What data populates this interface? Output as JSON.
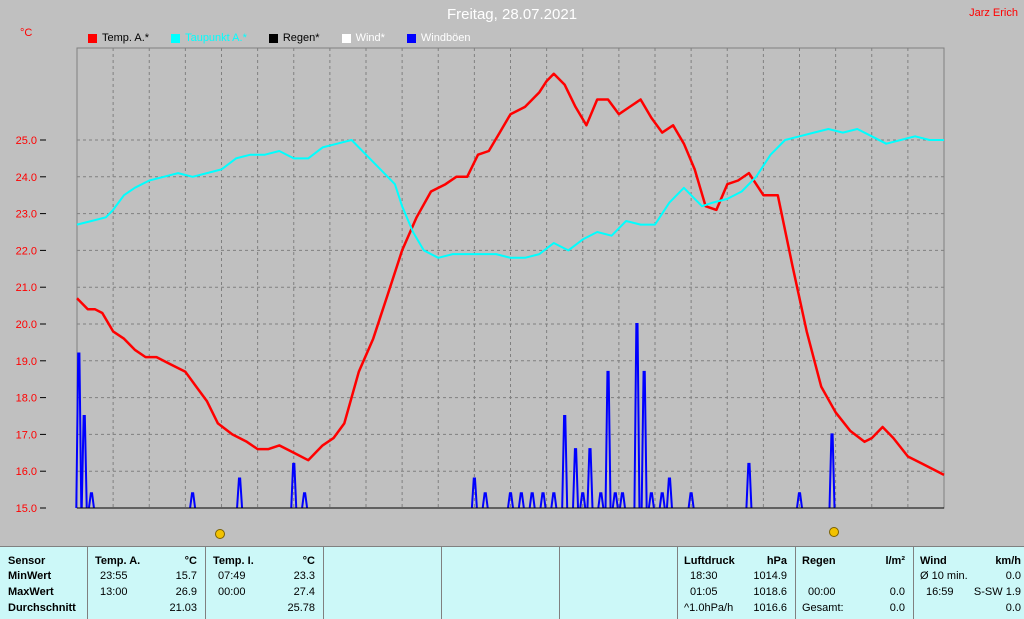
{
  "header": {
    "title": "Freitag, 28.07.2021",
    "author": "Jarz Erich",
    "unit_label": "°C"
  },
  "legend": [
    {
      "label": "Temp. A.*",
      "color": "#ff0000",
      "text_color": "#000000"
    },
    {
      "label": "Taupunkt A.*",
      "color": "#00ffff",
      "text_color": "#00ffff"
    },
    {
      "label": "Regen*",
      "color": "#000000",
      "text_color": "#000000"
    },
    {
      "label": "Wind*",
      "color": "#ffffff",
      "text_color": "#ffffff"
    },
    {
      "label": "Windböen",
      "color": "#0000ff",
      "text_color": "#ffffff"
    }
  ],
  "chart_data": {
    "type": "line",
    "title": "Freitag, 28.07.2021",
    "ylabel": "°C",
    "ylim": [
      15.0,
      27.5
    ],
    "yticks": [
      "15.0",
      "16.0",
      "17.0",
      "18.0",
      "19.0",
      "20.0",
      "21.0",
      "22.0",
      "23.0",
      "24.0",
      "25.0"
    ],
    "xlim": [
      0,
      24
    ],
    "grid": true,
    "legend_position": "top-left",
    "series": [
      {
        "name": "Temp. A.*",
        "color": "#ff0000",
        "x": [
          0.0,
          0.3,
          0.5,
          0.7,
          1.0,
          1.3,
          1.6,
          1.9,
          2.2,
          2.6,
          3.0,
          3.3,
          3.6,
          3.9,
          4.3,
          4.7,
          5.0,
          5.3,
          5.6,
          6.0,
          6.4,
          6.8,
          7.1,
          7.4,
          7.8,
          8.2,
          8.6,
          9.0,
          9.4,
          9.8,
          10.2,
          10.5,
          10.8,
          11.1,
          11.4,
          11.7,
          12.0,
          12.4,
          12.8,
          13.0,
          13.2,
          13.5,
          13.8,
          14.1,
          14.4,
          14.7,
          15.0,
          15.3,
          15.6,
          15.9,
          16.2,
          16.5,
          16.8,
          17.1,
          17.4,
          17.7,
          18.0,
          18.3,
          18.6,
          19.0,
          19.4,
          19.8,
          20.2,
          20.6,
          21.0,
          21.4,
          21.8,
          22.0,
          22.3,
          22.6,
          23.0,
          23.4,
          24.0
        ],
        "values": [
          20.7,
          20.4,
          20.4,
          20.3,
          19.8,
          19.6,
          19.3,
          19.1,
          19.1,
          18.9,
          18.7,
          18.3,
          17.9,
          17.3,
          17.0,
          16.8,
          16.6,
          16.6,
          16.7,
          16.5,
          16.3,
          16.7,
          16.9,
          17.3,
          18.7,
          19.6,
          20.8,
          22.0,
          22.9,
          23.6,
          23.8,
          24.0,
          24.0,
          24.6,
          24.7,
          25.2,
          25.7,
          25.9,
          26.3,
          26.6,
          26.8,
          26.5,
          25.9,
          25.4,
          26.1,
          26.1,
          25.7,
          25.9,
          26.1,
          25.6,
          25.2,
          25.4,
          24.9,
          24.2,
          23.2,
          23.1,
          23.8,
          23.9,
          24.1,
          23.5,
          23.5,
          21.6,
          19.8,
          18.3,
          17.6,
          17.1,
          16.8,
          16.9,
          17.2,
          16.9,
          16.4,
          16.2,
          15.9
        ]
      },
      {
        "name": "Taupunkt A.*",
        "color": "#00ffff",
        "x": [
          0.0,
          0.4,
          0.8,
          1.0,
          1.3,
          1.6,
          2.0,
          2.4,
          2.8,
          3.2,
          3.6,
          4.0,
          4.4,
          4.8,
          5.2,
          5.6,
          6.0,
          6.4,
          6.8,
          7.2,
          7.6,
          8.0,
          8.4,
          8.8,
          9.0,
          9.3,
          9.6,
          10.0,
          10.4,
          10.8,
          11.2,
          11.6,
          12.0,
          12.4,
          12.8,
          13.2,
          13.6,
          14.0,
          14.4,
          14.8,
          15.2,
          15.6,
          16.0,
          16.4,
          16.8,
          17.0,
          17.3,
          17.6,
          18.0,
          18.4,
          18.8,
          19.2,
          19.6,
          20.0,
          20.4,
          20.8,
          21.2,
          21.6,
          22.0,
          22.4,
          22.8,
          23.2,
          23.6,
          24.0
        ],
        "values": [
          22.7,
          22.8,
          22.9,
          23.1,
          23.5,
          23.7,
          23.9,
          24.0,
          24.1,
          24.0,
          24.1,
          24.2,
          24.5,
          24.6,
          24.6,
          24.7,
          24.5,
          24.5,
          24.8,
          24.9,
          25.0,
          24.6,
          24.2,
          23.8,
          23.2,
          22.5,
          22.0,
          21.8,
          21.9,
          21.9,
          21.9,
          21.9,
          21.8,
          21.8,
          21.9,
          22.2,
          22.0,
          22.3,
          22.5,
          22.4,
          22.8,
          22.7,
          22.7,
          23.3,
          23.7,
          23.5,
          23.2,
          23.3,
          23.4,
          23.6,
          24.0,
          24.6,
          25.0,
          25.1,
          25.2,
          25.3,
          25.2,
          25.3,
          25.1,
          24.9,
          25.0,
          25.1,
          25.0,
          25.0
        ]
      },
      {
        "name": "Windböen",
        "color": "#0000ff",
        "x": [
          0.05,
          0.2,
          0.4,
          3.2,
          4.5,
          6.0,
          6.3,
          11.0,
          11.3,
          12.0,
          12.3,
          12.6,
          12.9,
          13.2,
          13.5,
          13.8,
          14.0,
          14.2,
          14.5,
          14.7,
          14.9,
          15.1,
          15.5,
          15.7,
          15.9,
          16.2,
          16.4,
          17.0,
          18.6,
          20.0,
          20.9
        ],
        "values": [
          19.2,
          17.5,
          15.4,
          15.4,
          15.8,
          16.2,
          15.4,
          15.8,
          15.4,
          15.4,
          15.4,
          15.4,
          15.4,
          15.4,
          17.5,
          16.6,
          15.4,
          16.6,
          15.4,
          18.7,
          15.4,
          15.4,
          20.0,
          18.7,
          15.4,
          15.4,
          15.8,
          15.4,
          16.2,
          15.4,
          17.0
        ]
      }
    ]
  },
  "stats": {
    "sensor": {
      "header": "Sensor",
      "rows": [
        "MinWert",
        "MaxWert",
        "Durchschnitt"
      ]
    },
    "temp_a": {
      "header": "Temp. A.",
      "unit": "°C",
      "times": [
        "23:55",
        "13:00",
        ""
      ],
      "values": [
        "15.7",
        "26.9",
        "21.03"
      ]
    },
    "temp_i": {
      "header": "Temp. I.",
      "unit": "°C",
      "times": [
        "07:49",
        "00:00",
        ""
      ],
      "values": [
        "23.3",
        "27.4",
        "25.78"
      ]
    },
    "luftdruck": {
      "header": "Luftdruck",
      "unit": "hPa",
      "times": [
        "18:30",
        "01:05",
        "^1.0hPa/h"
      ],
      "values": [
        "1014.9",
        "1018.6",
        "1016.6"
      ]
    },
    "regen": {
      "header": "Regen",
      "unit": "l/m²",
      "times": [
        "",
        "00:00",
        "Gesamt:"
      ],
      "values": [
        "",
        "0.0",
        "0.0"
      ]
    },
    "wind": {
      "header": "Wind",
      "unit": "km/h",
      "times": [
        "Ø 10 min.",
        "16:59",
        ""
      ],
      "values": [
        "0.0",
        "S-SW 1.9",
        "0.0"
      ]
    }
  }
}
